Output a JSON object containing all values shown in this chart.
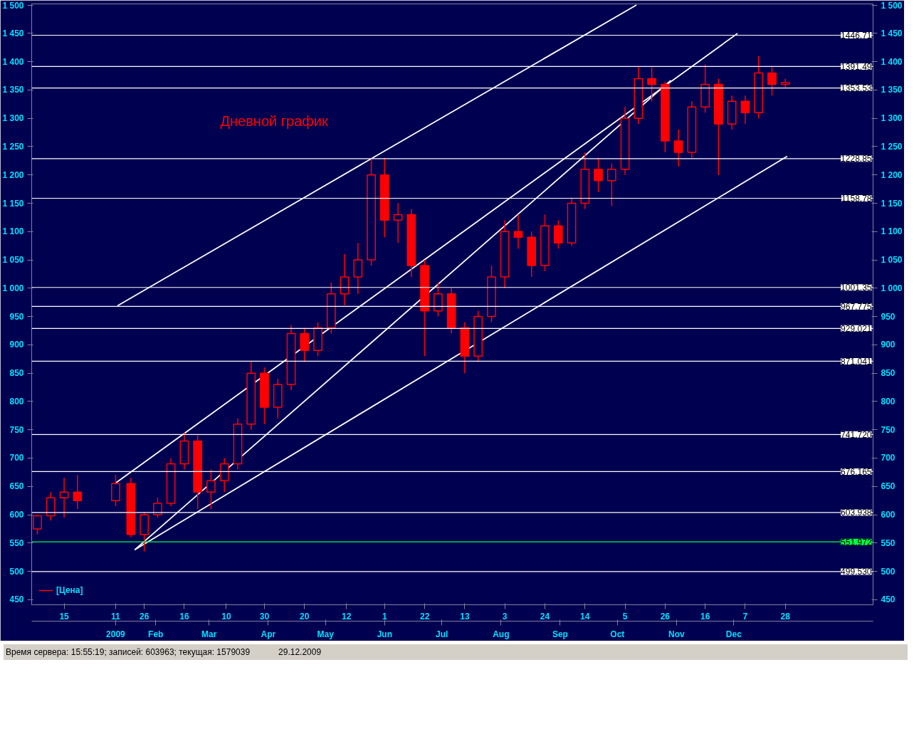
{
  "chart_data": {
    "type": "candlestick",
    "title": "Дневной график",
    "annotations": [
      "Время сервера: 15:55:19; записей: 603963; текущая: 1579039",
      "29.12.2009"
    ],
    "legend": "bottom left",
    "xlim": [
      "2008-11-28",
      "2010-02-12"
    ],
    "xticks": [
      {
        "value": "2008-12-15",
        "label": "15"
      },
      {
        "value": "2009-01-11",
        "label": "11"
      },
      {
        "value": "2009-01-26",
        "label": "26"
      },
      {
        "value": "2009-02-16",
        "label": "16"
      },
      {
        "value": "2009-03-10",
        "label": "10"
      },
      {
        "value": "2009-03-30",
        "label": "30"
      },
      {
        "value": "2009-04-20",
        "label": "20"
      },
      {
        "value": "2009-05-12",
        "label": "12"
      },
      {
        "value": "2009-06-01",
        "label": "1"
      },
      {
        "value": "2009-06-22",
        "label": "22"
      },
      {
        "value": "2009-07-13",
        "label": "13"
      },
      {
        "value": "2009-08-03",
        "label": "3"
      },
      {
        "value": "2009-08-24",
        "label": "24"
      },
      {
        "value": "2009-09-14",
        "label": "14"
      },
      {
        "value": "2009-10-05",
        "label": "5"
      },
      {
        "value": "2009-10-26",
        "label": "26"
      },
      {
        "value": "2009-11-16",
        "label": "16"
      },
      {
        "value": "2009-12-07",
        "label": "7"
      },
      {
        "value": "2009-12-28",
        "label": "28"
      }
    ],
    "x2lim": [
      "2008-11-28",
      "2010-02-12"
    ],
    "x2ticks": [
      {
        "value": "2009-01-11",
        "label": "2009"
      },
      {
        "value": "2009-02-01",
        "label": "Feb"
      },
      {
        "value": "2009-03-01",
        "label": "Mar"
      },
      {
        "value": "2009-04-01",
        "label": "Apr"
      },
      {
        "value": "2009-05-01",
        "label": "May"
      },
      {
        "value": "2009-06-01",
        "label": "Jun"
      },
      {
        "value": "2009-07-01",
        "label": "Jul"
      },
      {
        "value": "2009-08-01",
        "label": "Aug"
      },
      {
        "value": "2009-09-01",
        "label": "Sep"
      },
      {
        "value": "2009-10-01",
        "label": "Oct"
      },
      {
        "value": "2009-11-01",
        "label": "Nov"
      },
      {
        "value": "2009-12-01",
        "label": "Dec"
      }
    ],
    "ylim": [
      441,
      1502
    ],
    "yticks": [
      450,
      500,
      550,
      600,
      650,
      700,
      750,
      800,
      850,
      900,
      950,
      {
        "value": 1000,
        "label": "1 000"
      },
      {
        "value": 1050,
        "label": "1 050"
      },
      {
        "value": 1100,
        "label": "1 100"
      },
      {
        "value": 1150,
        "label": "1 150"
      },
      {
        "value": 1200,
        "label": "1 200"
      },
      {
        "value": 1250,
        "label": "1 250"
      },
      {
        "value": 1300,
        "label": "1 300"
      },
      {
        "value": 1350,
        "label": "1 350"
      },
      {
        "value": 1400,
        "label": "1 400"
      },
      {
        "value": 1450,
        "label": "1 450"
      },
      {
        "value": 1500,
        "label": "1 500"
      }
    ],
    "y2lim": [
      441,
      1502
    ],
    "y2ticks": [
      450,
      500,
      550,
      600,
      650,
      700,
      750,
      800,
      850,
      900,
      950,
      {
        "value": 1000,
        "label": "1 000"
      },
      {
        "value": 1050,
        "label": "1 050"
      },
      {
        "value": 1100,
        "label": "1 100"
      },
      {
        "value": 1150,
        "label": "1 150"
      },
      {
        "value": 1200,
        "label": "1 200"
      },
      {
        "value": 1250,
        "label": "1 250"
      },
      {
        "value": 1300,
        "label": "1 300"
      },
      {
        "value": 1350,
        "label": "1 350"
      },
      {
        "value": 1400,
        "label": "1 400"
      },
      {
        "value": 1450,
        "label": "1 450"
      },
      {
        "value": 1500,
        "label": "1 500"
      }
    ],
    "ref_lines": [
      {
        "axis": "y",
        "value": 1446.71,
        "label": "1446.71",
        "color": "#ffffff"
      },
      {
        "axis": "y",
        "value": 1391.49,
        "label": "1391.49",
        "color": "#ffffff"
      },
      {
        "axis": "y",
        "value": 1353.53,
        "label": "1353.53",
        "color": "#ffffff"
      },
      {
        "axis": "y",
        "value": 1228.85,
        "label": "1228.85",
        "color": "#ffffff"
      },
      {
        "axis": "y",
        "value": 1158.78,
        "label": "1158.78",
        "color": "#ffffff"
      },
      {
        "axis": "y",
        "value": 1001.35,
        "label": "1001.35",
        "color": "#ffffff"
      },
      {
        "axis": "y",
        "value": 967.775,
        "label": "967.775",
        "color": "#ffffff"
      },
      {
        "axis": "y",
        "value": 929.021,
        "label": "929.021",
        "color": "#ffffff"
      },
      {
        "axis": "y",
        "value": 871.041,
        "label": "871.041",
        "color": "#ffffff"
      },
      {
        "axis": "y",
        "value": 741.72,
        "label": "741.720",
        "color": "#ffffff"
      },
      {
        "axis": "y",
        "value": 676.165,
        "label": "676.165",
        "color": "#ffffff"
      },
      {
        "axis": "y",
        "value": 603.938,
        "label": "603.938",
        "color": "#ffffff"
      },
      {
        "axis": "y",
        "value": 551.972,
        "label": "551.972",
        "color": "#00ff40"
      },
      {
        "axis": "y",
        "value": 499.53,
        "label": "499.530",
        "color": "#ffffff"
      }
    ],
    "series": [
      {
        "name": "[Цена]",
        "color": "#ff0000",
        "x": [
          "2008-12-01",
          "2008-12-08",
          "2008-12-15",
          "2008-12-22",
          "2009-01-11",
          "2009-01-19",
          "2009-01-26",
          "2009-02-02",
          "2009-02-09",
          "2009-02-16",
          "2009-02-23",
          "2009-03-02",
          "2009-03-09",
          "2009-03-16",
          "2009-03-23",
          "2009-03-30",
          "2009-04-06",
          "2009-04-13",
          "2009-04-20",
          "2009-04-27",
          "2009-05-04",
          "2009-05-11",
          "2009-05-18",
          "2009-05-25",
          "2009-06-01",
          "2009-06-08",
          "2009-06-15",
          "2009-06-22",
          "2009-06-29",
          "2009-07-06",
          "2009-07-13",
          "2009-07-20",
          "2009-07-27",
          "2009-08-03",
          "2009-08-10",
          "2009-08-17",
          "2009-08-24",
          "2009-08-31",
          "2009-09-07",
          "2009-09-14",
          "2009-09-21",
          "2009-09-28",
          "2009-10-05",
          "2009-10-12",
          "2009-10-19",
          "2009-10-26",
          "2009-11-02",
          "2009-11-09",
          "2009-11-16",
          "2009-11-23",
          "2009-11-30",
          "2009-12-07",
          "2009-12-14",
          "2009-12-21",
          "2009-12-28"
        ],
        "ohlc": [
          [
            575,
            600,
            565,
            598
          ],
          [
            598,
            640,
            590,
            630
          ],
          [
            630,
            665,
            595,
            640
          ],
          [
            640,
            670,
            610,
            625
          ],
          [
            625,
            670,
            615,
            655
          ],
          [
            655,
            665,
            560,
            565
          ],
          [
            565,
            605,
            535,
            600
          ],
          [
            600,
            630,
            595,
            620
          ],
          [
            620,
            700,
            615,
            690
          ],
          [
            690,
            745,
            680,
            730
          ],
          [
            730,
            740,
            610,
            640
          ],
          [
            640,
            680,
            610,
            660
          ],
          [
            660,
            700,
            640,
            690
          ],
          [
            690,
            770,
            680,
            760
          ],
          [
            760,
            870,
            750,
            850
          ],
          [
            850,
            860,
            760,
            790
          ],
          [
            790,
            840,
            770,
            830
          ],
          [
            830,
            935,
            820,
            920
          ],
          [
            920,
            930,
            870,
            890
          ],
          [
            890,
            940,
            880,
            930
          ],
          [
            930,
            1010,
            920,
            990
          ],
          [
            990,
            1060,
            970,
            1020
          ],
          [
            1020,
            1080,
            990,
            1050
          ],
          [
            1050,
            1230,
            1040,
            1200
          ],
          [
            1200,
            1230,
            1090,
            1120
          ],
          [
            1120,
            1150,
            1080,
            1130
          ],
          [
            1130,
            1140,
            1020,
            1040
          ],
          [
            1040,
            1050,
            880,
            960
          ],
          [
            960,
            1010,
            950,
            990
          ],
          [
            990,
            1000,
            920,
            930
          ],
          [
            930,
            940,
            850,
            880
          ],
          [
            880,
            960,
            870,
            950
          ],
          [
            950,
            1040,
            940,
            1020
          ],
          [
            1020,
            1120,
            1000,
            1100
          ],
          [
            1100,
            1130,
            1070,
            1090
          ],
          [
            1090,
            1100,
            1020,
            1040
          ],
          [
            1040,
            1130,
            1030,
            1110
          ],
          [
            1110,
            1120,
            1070,
            1080
          ],
          [
            1080,
            1160,
            1075,
            1150
          ],
          [
            1150,
            1240,
            1140,
            1210
          ],
          [
            1210,
            1230,
            1170,
            1190
          ],
          [
            1190,
            1220,
            1145,
            1210
          ],
          [
            1210,
            1320,
            1200,
            1300
          ],
          [
            1300,
            1390,
            1290,
            1370
          ],
          [
            1370,
            1390,
            1330,
            1360
          ],
          [
            1360,
            1365,
            1240,
            1260
          ],
          [
            1260,
            1280,
            1215,
            1240
          ],
          [
            1240,
            1330,
            1230,
            1320
          ],
          [
            1320,
            1395,
            1310,
            1360
          ],
          [
            1360,
            1370,
            1200,
            1290
          ],
          [
            1290,
            1340,
            1280,
            1330
          ],
          [
            1330,
            1340,
            1290,
            1310
          ],
          [
            1310,
            1410,
            1300,
            1380
          ],
          [
            1380,
            1390,
            1340,
            1360
          ],
          [
            1360,
            1370,
            1355,
            1363
          ]
        ]
      },
      {
        "type": "line",
        "color": "#ffffff",
        "x": [
          "2009-01-12",
          "2009-10-11"
        ],
        "values": [
          969,
          1500
        ]
      },
      {
        "type": "line",
        "color": "#ffffff",
        "x": [
          "2009-01-11",
          "2009-12-03"
        ],
        "values": [
          656,
          1450
        ]
      },
      {
        "type": "line",
        "color": "#ffffff",
        "x": [
          "2009-01-21",
          "2009-10-29"
        ],
        "values": [
          538,
          1367
        ]
      },
      {
        "type": "line",
        "color": "#ffffff",
        "x": [
          "2009-01-21",
          "2009-12-29"
        ],
        "values": [
          538,
          1233
        ]
      }
    ]
  }
}
